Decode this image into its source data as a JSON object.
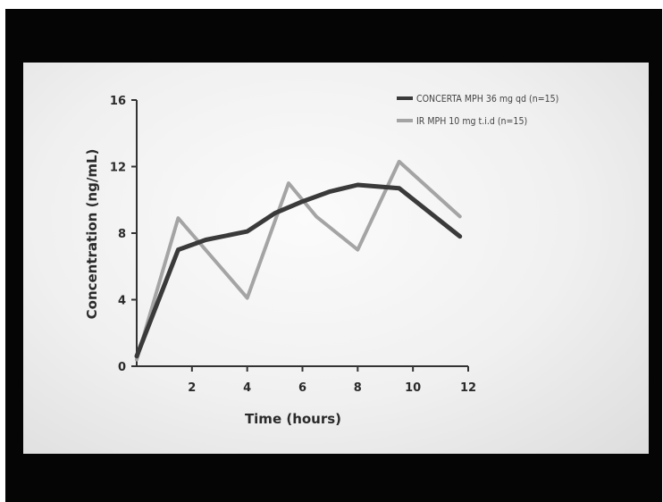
{
  "chart_data": {
    "type": "line",
    "xlabel": "Time (hours)",
    "ylabel": "Concentration (ng/mL)",
    "xlim": [
      0,
      12
    ],
    "ylim": [
      0,
      16
    ],
    "xticks": [
      2,
      4,
      6,
      8,
      10,
      12
    ],
    "yticks": [
      0,
      4,
      8,
      12,
      16
    ],
    "grid": false,
    "legend_position": "top-right",
    "series": [
      {
        "name": "CONCERTA MPH 36 mg qd (n=15)",
        "color": "#3a3a3a",
        "x": [
          0,
          1.5,
          2.5,
          4,
          5,
          6,
          7,
          8,
          9.5,
          11.7
        ],
        "y": [
          0.6,
          7.0,
          7.6,
          8.1,
          9.2,
          9.9,
          10.5,
          10.9,
          10.7,
          7.8
        ]
      },
      {
        "name": "IR MPH 10 mg t.i.d (n=15)",
        "color": "#a4a4a4",
        "x": [
          0,
          1.5,
          4,
          5.5,
          6.5,
          8,
          9.5,
          11.7
        ],
        "y": [
          0.4,
          8.9,
          4.1,
          11.0,
          9.0,
          7.0,
          12.3,
          9.0
        ]
      }
    ]
  }
}
